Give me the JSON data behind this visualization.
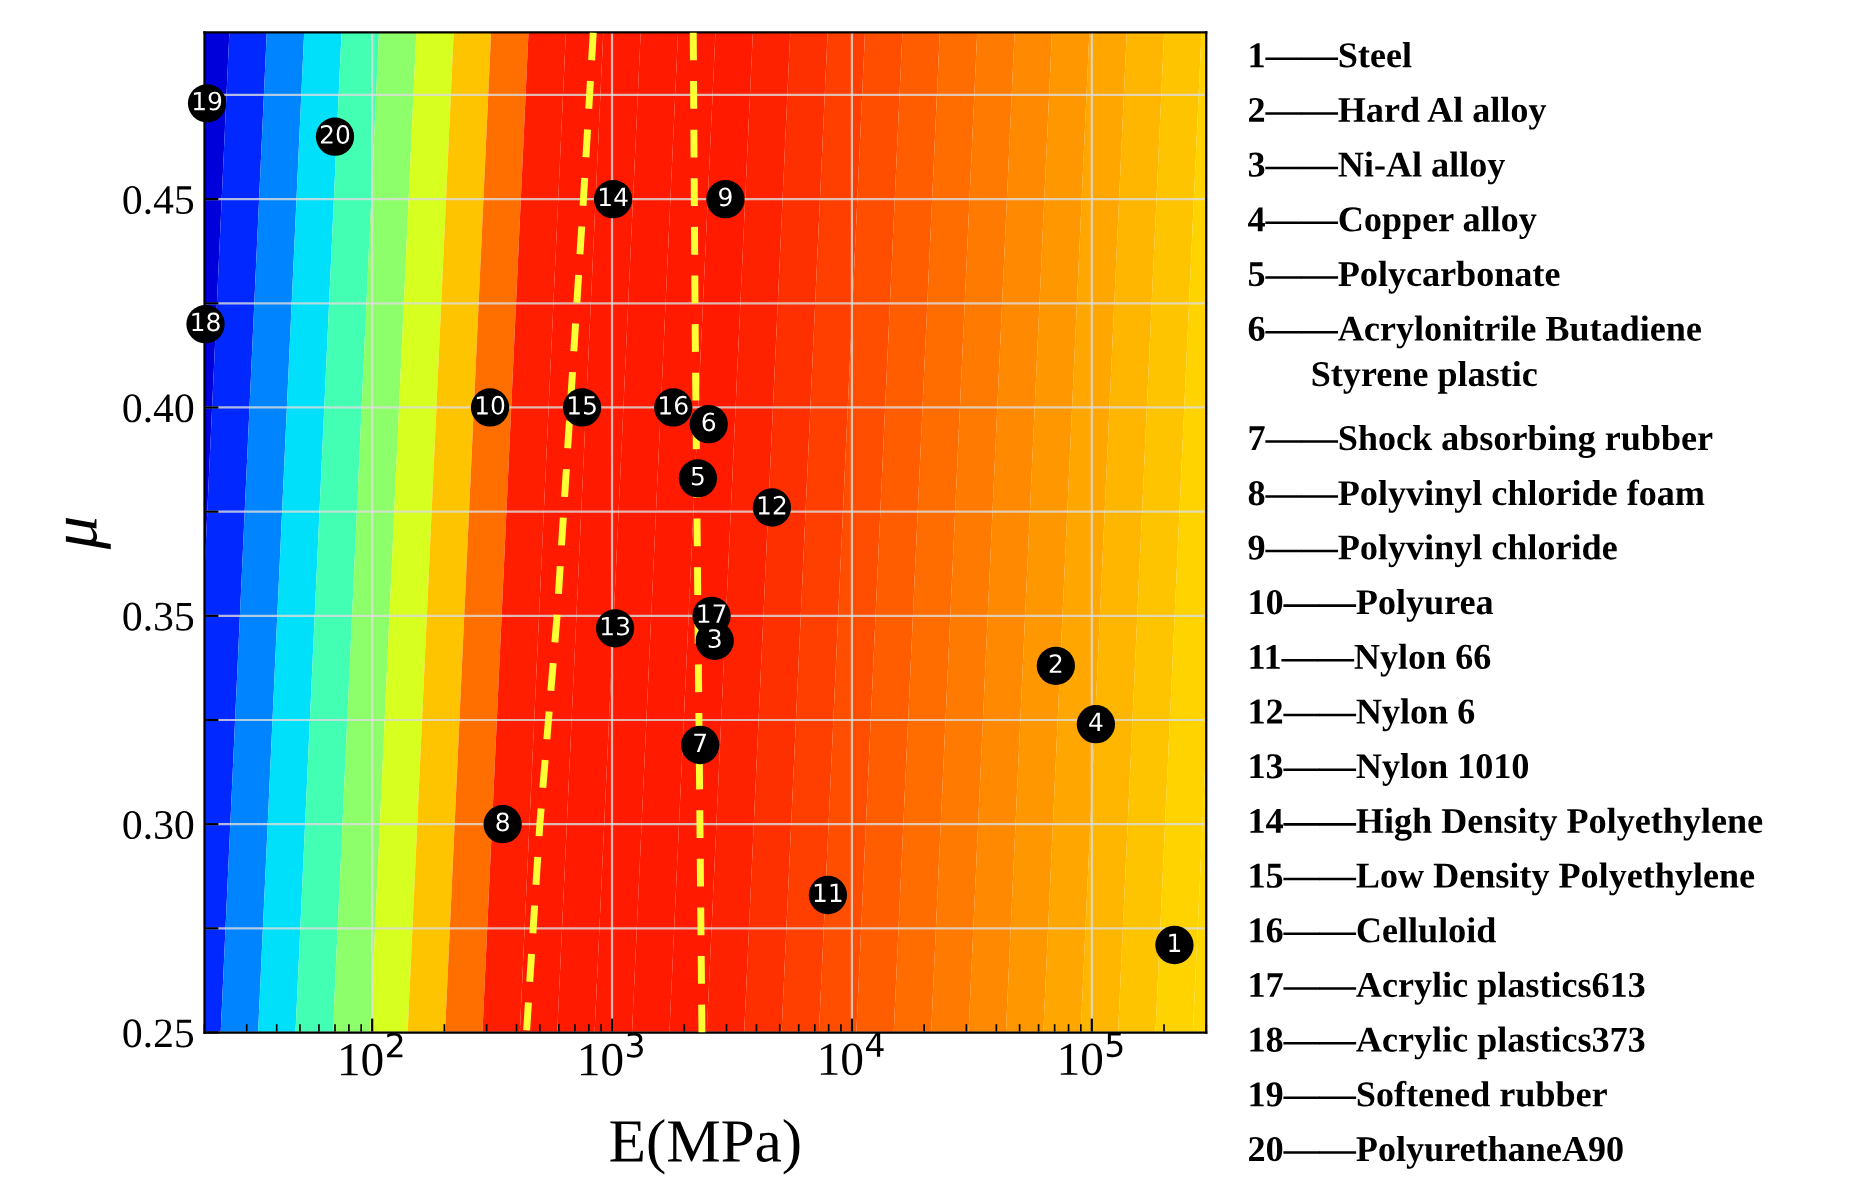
{
  "chart_data": {
    "type": "scatter",
    "xlabel": "E(MPa)",
    "ylabel": "μ",
    "log": "x",
    "grid": true,
    "marker": "circle",
    "xlim": [
      20,
      300000
    ],
    "ylim": [
      0.25,
      0.49
    ],
    "xticks": [
      {
        "value": 100,
        "label": "10$^{2}$"
      },
      {
        "value": 1000,
        "label": "10$^{3}$"
      },
      {
        "value": 10000,
        "label": "10$^{4}$"
      },
      {
        "value": 100000,
        "label": "10$^{5}$"
      }
    ],
    "yticks": [
      0.25,
      {
        "value": 0.275,
        "label": null
      },
      {
        "value": 0.3,
        "label": "0.30"
      },
      {
        "value": 0.325,
        "label": null
      },
      0.35,
      {
        "value": 0.375,
        "label": null
      },
      {
        "value": 0.4,
        "label": "0.40"
      },
      {
        "value": 0.425,
        "label": null
      },
      0.45,
      {
        "value": 0.475,
        "label": null
      }
    ],
    "series": [
      {
        "color": "#000000",
        "x": [
          221000,
          70800,
          2680,
          104000,
          2280,
          2530,
          2330,
          350,
          2970,
          310,
          7940,
          4640,
          1030,
          1010,
          750,
          1800,
          2600,
          20.2,
          20.5,
          70
        ],
        "values": [
          0.271,
          0.338,
          0.344,
          0.324,
          0.383,
          0.396,
          0.319,
          0.3,
          0.45,
          0.4,
          0.283,
          0.376,
          0.347,
          0.45,
          0.4,
          0.4,
          0.35,
          0.42,
          0.473,
          0.465
        ]
      },
      {
        "type": "line",
        "color": "#ffff33",
        "line_style": "dashed",
        "marker": "none",
        "x": [
          835,
          760,
          590,
          500,
          440
        ],
        "values": [
          0.49,
          0.45,
          0.35,
          0.3,
          0.25
        ]
      },
      {
        "type": "line",
        "color": "#ffff33",
        "line_style": "dashed",
        "marker": "none",
        "x": [
          2180,
          2220,
          2370
        ],
        "values": [
          0.49,
          0.42,
          0.25
        ]
      }
    ],
    "annotations": [
      {
        "text": "1",
        "x": 221000,
        "y": 0.271
      },
      {
        "text": "2",
        "x": 70800,
        "y": 0.338
      },
      {
        "text": "3",
        "x": 2680,
        "y": 0.344
      },
      {
        "text": "4",
        "x": 104000,
        "y": 0.324
      },
      {
        "text": "5",
        "x": 2280,
        "y": 0.383
      },
      {
        "text": "6",
        "x": 2530,
        "y": 0.396
      },
      {
        "text": "7",
        "x": 2330,
        "y": 0.319
      },
      {
        "text": "8",
        "x": 350,
        "y": 0.3
      },
      {
        "text": "9",
        "x": 2970,
        "y": 0.45
      },
      {
        "text": "10",
        "x": 310,
        "y": 0.4
      },
      {
        "text": "11",
        "x": 7940,
        "y": 0.283
      },
      {
        "text": "12",
        "x": 4640,
        "y": 0.376
      },
      {
        "text": "13",
        "x": 1030,
        "y": 0.347
      },
      {
        "text": "14",
        "x": 1010,
        "y": 0.45
      },
      {
        "text": "15",
        "x": 750,
        "y": 0.4
      },
      {
        "text": "16",
        "x": 1800,
        "y": 0.4
      },
      {
        "text": "17",
        "x": 2600,
        "y": 0.35
      },
      {
        "text": "18",
        "x": 20.2,
        "y": 0.42
      },
      {
        "text": "19",
        "x": 20.5,
        "y": 0.473
      },
      {
        "text": "20",
        "x": 70,
        "y": 0.465
      },
      "1——Steel",
      "2——Hard Al alloy",
      "3——Ni-Al alloy",
      "4——Copper alloy",
      "5——Polycarbonate",
      "6——Acrylonitrile Butadiene\n       Styrene plastic",
      "7——Shock absorbing rubber",
      "8——Polyvinyl chloride foam",
      "9——Polyvinyl chloride",
      "10——Polyurea",
      "11——Nylon 66",
      "12——Nylon 6",
      "13——Nylon 1010",
      "14——High Density Polyethylene",
      "15——Low Density Polyethylene",
      "16——Celluloid",
      "17——Acrylic plastics613",
      "18——Acrylic plastics373",
      "19——Softened rubber",
      "20——PolyurethaneA90"
    ]
  }
}
